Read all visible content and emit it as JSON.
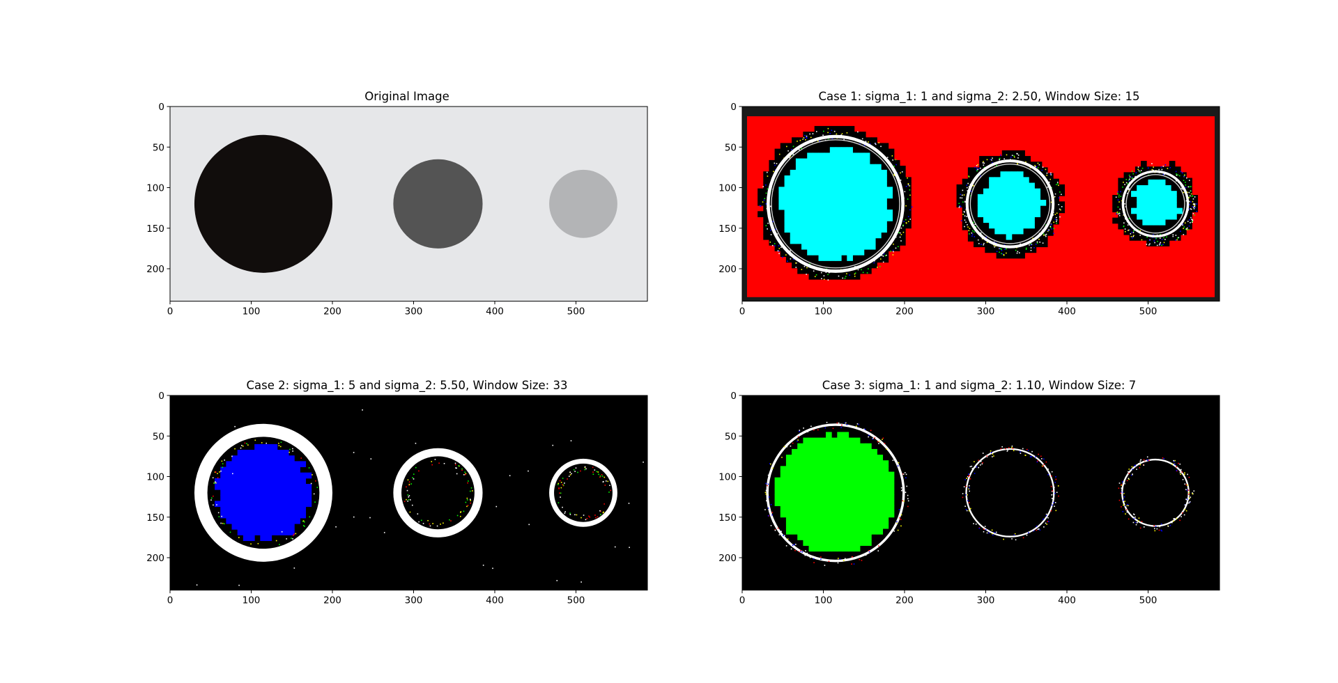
{
  "figure": {
    "panels": [
      {
        "id": "original",
        "title": "Original Image",
        "image_extent": {
          "width": 588,
          "height": 240
        },
        "x_ticks": [
          0,
          100,
          200,
          300,
          400,
          500
        ],
        "y_ticks": [
          0,
          50,
          100,
          150,
          200
        ],
        "background": "#e6e7e9",
        "circles": [
          {
            "cx": 115,
            "cy": 120,
            "r": 85,
            "color": "#110d0c"
          },
          {
            "cx": 330,
            "cy": 120,
            "r": 55,
            "color": "#545454"
          },
          {
            "cx": 509,
            "cy": 120,
            "r": 42,
            "color": "#b3b4b6"
          }
        ]
      },
      {
        "id": "case1",
        "title": "Case 1: sigma_1: 1 and sigma_2: 2.50, Window Size: 15",
        "image_extent": {
          "width": 588,
          "height": 240
        },
        "x_ticks": [
          0,
          100,
          200,
          300,
          400,
          500
        ],
        "y_ticks": [
          0,
          50,
          100,
          150,
          200
        ],
        "background": "#ff0000",
        "border_color": "#1a1a1a",
        "blob_color": "#000000",
        "ring_color": "#ffffff",
        "fill_color": "#00ffff",
        "accent_colors": [
          "#00ff00",
          "#0000ff",
          "#ffff00"
        ]
      },
      {
        "id": "case2",
        "title": "Case 2: sigma_1: 5 and sigma_2: 5.50, Window Size: 33",
        "image_extent": {
          "width": 588,
          "height": 240
        },
        "x_ticks": [
          0,
          100,
          200,
          300,
          400,
          500
        ],
        "y_ticks": [
          0,
          50,
          100,
          150,
          200
        ],
        "background": "#000000",
        "ring_color": "#ffffff",
        "fill_color": "#0000ff",
        "accent_colors": [
          "#00ff00",
          "#ffff00",
          "#ff0000"
        ]
      },
      {
        "id": "case3",
        "title": "Case 3: sigma_1: 1 and sigma_2: 1.10, Window Size: 7",
        "image_extent": {
          "width": 588,
          "height": 240
        },
        "x_ticks": [
          0,
          100,
          200,
          300,
          400,
          500
        ],
        "y_ticks": [
          0,
          50,
          100,
          150,
          200
        ],
        "background": "#000000",
        "ring_color": "#ffffff",
        "fill_color": "#00ff00",
        "accent_colors": [
          "#ff0000",
          "#0000ff",
          "#ffff00"
        ]
      }
    ]
  }
}
